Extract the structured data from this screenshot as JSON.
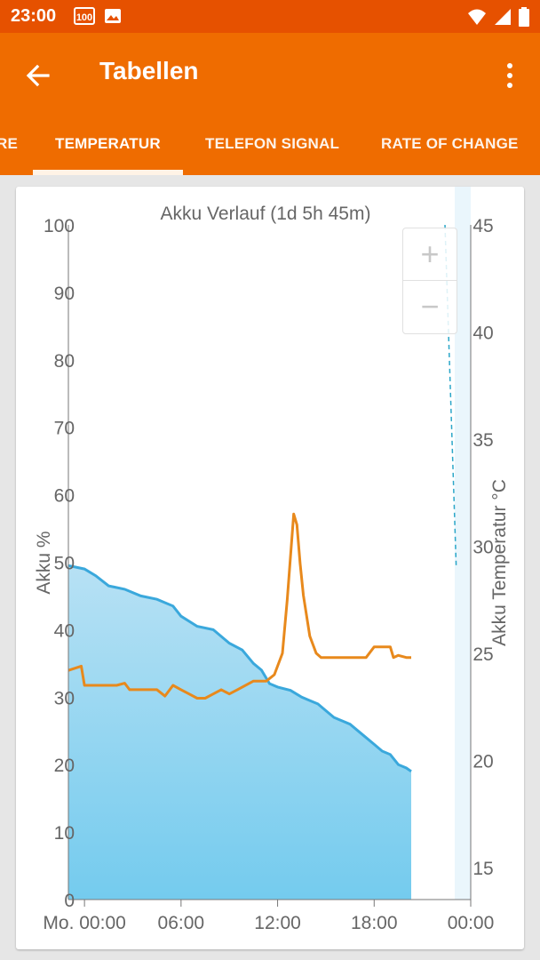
{
  "status_bar": {
    "time": "23:00",
    "notification_badge": "100",
    "icons": [
      "battery-100-notification-icon",
      "image-notification-icon",
      "wifi-icon",
      "signal-icon",
      "battery-icon"
    ]
  },
  "app_bar": {
    "title": "Tabellen",
    "back_icon": "arrow-back-icon",
    "more_icon": "more-vert-icon"
  },
  "tabs": {
    "items": [
      {
        "label": "RE"
      },
      {
        "label": "TEMPERATUR",
        "selected": true
      },
      {
        "label": "TELEFON SIGNAL"
      },
      {
        "label": "RATE OF CHANGE"
      }
    ]
  },
  "colors": {
    "status_bar": "#e65100",
    "app_bar": "#ef6c00",
    "battery_line": "#3aa8dc",
    "battery_fill_top": "#b7e1f4",
    "battery_fill_bottom": "#74cbee",
    "temperature_line": "#e8891c",
    "temperature_dashed": "#2aa6c8"
  },
  "zoom": {
    "plus": "+",
    "minus": "−"
  },
  "chart_data": {
    "type": "area",
    "title": "Akku Verlauf (1d 5h 45m)",
    "ylabel": "Akku %",
    "y2label": "Akku Temperatur °C",
    "ylim": [
      0,
      100
    ],
    "y2lim": [
      13.5,
      45
    ],
    "yticks": [
      "100",
      "90",
      "80",
      "70",
      "60",
      "50",
      "40",
      "30",
      "20",
      "10",
      "0"
    ],
    "y2ticks": [
      "45",
      "40",
      "35",
      "30",
      "25",
      "20",
      "15"
    ],
    "xticks": [
      "Mo. 00:00",
      "06:00",
      "12:00",
      "18:00",
      "00:00"
    ],
    "x_hours_range": [
      -1,
      24
    ],
    "grid": false,
    "series": [
      {
        "name": "Akku %",
        "axis": "left",
        "points": [
          [
            -1,
            49.5
          ],
          [
            0,
            49
          ],
          [
            0.7,
            48
          ],
          [
            1.5,
            46.5
          ],
          [
            2.5,
            46
          ],
          [
            3.5,
            45
          ],
          [
            4.5,
            44.5
          ],
          [
            5.5,
            43.5
          ],
          [
            6,
            42
          ],
          [
            7,
            40.5
          ],
          [
            8,
            40
          ],
          [
            9,
            38
          ],
          [
            9.8,
            37
          ],
          [
            10.5,
            35
          ],
          [
            11,
            34
          ],
          [
            11.5,
            32
          ],
          [
            12,
            31.5
          ],
          [
            12.8,
            31
          ],
          [
            13.5,
            30
          ],
          [
            14,
            29.5
          ],
          [
            14.5,
            29
          ],
          [
            15,
            28
          ],
          [
            15.5,
            27
          ],
          [
            16,
            26.5
          ],
          [
            16.5,
            26
          ],
          [
            17,
            25
          ],
          [
            17.5,
            24
          ],
          [
            18,
            23
          ],
          [
            18.5,
            22
          ],
          [
            19,
            21.5
          ],
          [
            19.5,
            20
          ],
          [
            20,
            19.5
          ],
          [
            20.3,
            19
          ]
        ]
      },
      {
        "name": "Akku Temperatur °C",
        "axis": "right",
        "points": [
          [
            -1,
            24.2
          ],
          [
            -0.2,
            24.4
          ],
          [
            0,
            23.5
          ],
          [
            1,
            23.5
          ],
          [
            2,
            23.5
          ],
          [
            2.5,
            23.6
          ],
          [
            2.8,
            23.3
          ],
          [
            3.5,
            23.3
          ],
          [
            4.5,
            23.3
          ],
          [
            5,
            23.0
          ],
          [
            5.5,
            23.5
          ],
          [
            6,
            23.3
          ],
          [
            6.5,
            23.1
          ],
          [
            7,
            22.9
          ],
          [
            7.5,
            22.9
          ],
          [
            8,
            23.1
          ],
          [
            8.5,
            23.3
          ],
          [
            9,
            23.1
          ],
          [
            9.5,
            23.3
          ],
          [
            10.5,
            23.7
          ],
          [
            11.3,
            23.7
          ],
          [
            11.8,
            24.0
          ],
          [
            12.3,
            25.0
          ],
          [
            12.6,
            27.5
          ],
          [
            13,
            31.5
          ],
          [
            13.2,
            31.0
          ],
          [
            13.4,
            29.2
          ],
          [
            13.6,
            27.7
          ],
          [
            14,
            25.8
          ],
          [
            14.4,
            25.0
          ],
          [
            14.7,
            24.8
          ],
          [
            15,
            24.8
          ],
          [
            16,
            24.8
          ],
          [
            17,
            24.8
          ],
          [
            17.5,
            24.8
          ],
          [
            18,
            25.3
          ],
          [
            18.5,
            25.3
          ],
          [
            19,
            25.3
          ],
          [
            19.2,
            24.8
          ],
          [
            19.5,
            24.9
          ],
          [
            20,
            24.8
          ],
          [
            20.3,
            24.8
          ]
        ]
      }
    ],
    "annotations": [
      {
        "type": "dashed-line",
        "axis": "right",
        "points": [
          [
            22.4,
            45
          ],
          [
            23.1,
            29
          ]
        ]
      }
    ]
  }
}
